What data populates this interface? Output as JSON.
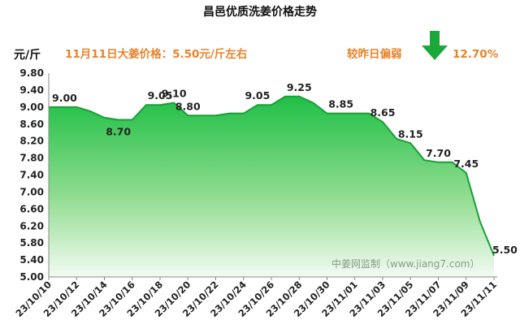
{
  "chart_data": {
    "type": "area",
    "title": "昌邑优质洗姜价格走势",
    "ylabel": "元/斤",
    "ylim": [
      5.0,
      9.8
    ],
    "yticks": [
      5.0,
      5.4,
      5.8,
      6.2,
      6.6,
      7.0,
      7.4,
      7.8,
      8.2,
      8.6,
      9.0,
      9.4,
      9.8
    ],
    "xticks": [
      "23/10/10",
      "23/10/12",
      "23/10/14",
      "23/10/16",
      "23/10/18",
      "23/10/20",
      "23/10/22",
      "23/10/24",
      "23/10/26",
      "23/10/28",
      "23/10/30",
      "23/11/01",
      "23/11/03",
      "23/11/05",
      "23/11/07",
      "23/11/09",
      "23/11/11"
    ],
    "x": [
      "23/10/10",
      "23/10/11",
      "23/10/12",
      "23/10/13",
      "23/10/14",
      "23/10/15",
      "23/10/16",
      "23/10/17",
      "23/10/18",
      "23/10/19",
      "23/10/20",
      "23/10/21",
      "23/10/22",
      "23/10/23",
      "23/10/24",
      "23/10/25",
      "23/10/26",
      "23/10/27",
      "23/10/28",
      "23/10/29",
      "23/10/30",
      "23/10/31",
      "23/11/01",
      "23/11/02",
      "23/11/03",
      "23/11/04",
      "23/11/05",
      "23/11/06",
      "23/11/07",
      "23/11/08",
      "23/11/09",
      "23/11/10",
      "23/11/11"
    ],
    "y": [
      9.0,
      9.0,
      9.0,
      8.9,
      8.75,
      8.7,
      8.7,
      9.05,
      9.05,
      9.1,
      8.8,
      8.8,
      8.8,
      8.85,
      8.85,
      9.05,
      9.05,
      9.25,
      9.25,
      9.1,
      8.85,
      8.85,
      8.85,
      8.85,
      8.65,
      8.25,
      8.15,
      7.75,
      7.7,
      7.7,
      7.45,
      6.3,
      5.5
    ],
    "data_labels": [
      {
        "x": "23/10/10",
        "text": "9.00"
      },
      {
        "x": "23/10/15",
        "text": "8.70"
      },
      {
        "x": "23/10/18",
        "text": "9.05"
      },
      {
        "x": "23/10/19",
        "text": "9.10"
      },
      {
        "x": "23/10/20",
        "text": "8.80"
      },
      {
        "x": "23/10/25",
        "text": "9.05"
      },
      {
        "x": "23/10/28",
        "text": "9.25"
      },
      {
        "x": "23/10/31",
        "text": "8.85"
      },
      {
        "x": "23/11/03",
        "text": "8.65"
      },
      {
        "x": "23/11/05",
        "text": "8.15"
      },
      {
        "x": "23/11/07",
        "text": "7.70"
      },
      {
        "x": "23/11/09",
        "text": "7.45"
      },
      {
        "x": "23/11/11",
        "text": "5.50"
      }
    ],
    "grid": false,
    "fill_color_top": "#1fbf45",
    "fill_color_bottom": "#f2fbf2",
    "line_color": "#1a9e3a"
  },
  "headline": {
    "price_text": "11月11日大姜价格：5.50元/斤左右",
    "change_label": "较昨日偏弱",
    "change_value": "12.70%",
    "arrow_icon": "down-arrow-icon",
    "arrow_color": "#1aa83a",
    "text_color": "#e8832a"
  },
  "watermark": "中姜网监制（www.jiang7.com）"
}
